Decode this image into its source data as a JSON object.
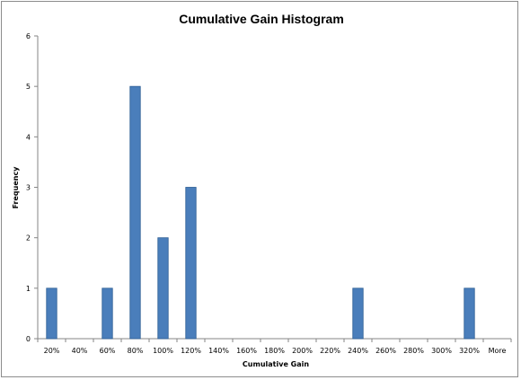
{
  "chart_data": {
    "type": "bar",
    "title": "Cumulative Gain Histogram",
    "xlabel": "Cumulative Gain",
    "ylabel": "Frequency",
    "categories": [
      "20%",
      "40%",
      "60%",
      "80%",
      "100%",
      "120%",
      "140%",
      "160%",
      "180%",
      "200%",
      "220%",
      "240%",
      "260%",
      "280%",
      "300%",
      "320%",
      "More"
    ],
    "values": [
      1,
      0,
      1,
      5,
      2,
      3,
      0,
      0,
      0,
      0,
      0,
      1,
      0,
      0,
      0,
      1,
      0
    ],
    "ylim": [
      0,
      6
    ],
    "yticks": [
      0,
      1,
      2,
      3,
      4,
      5,
      6
    ],
    "grid": false,
    "legend": "none",
    "bar_color": "#4a7ebb",
    "bar_edge_color": "#2c5d94"
  }
}
